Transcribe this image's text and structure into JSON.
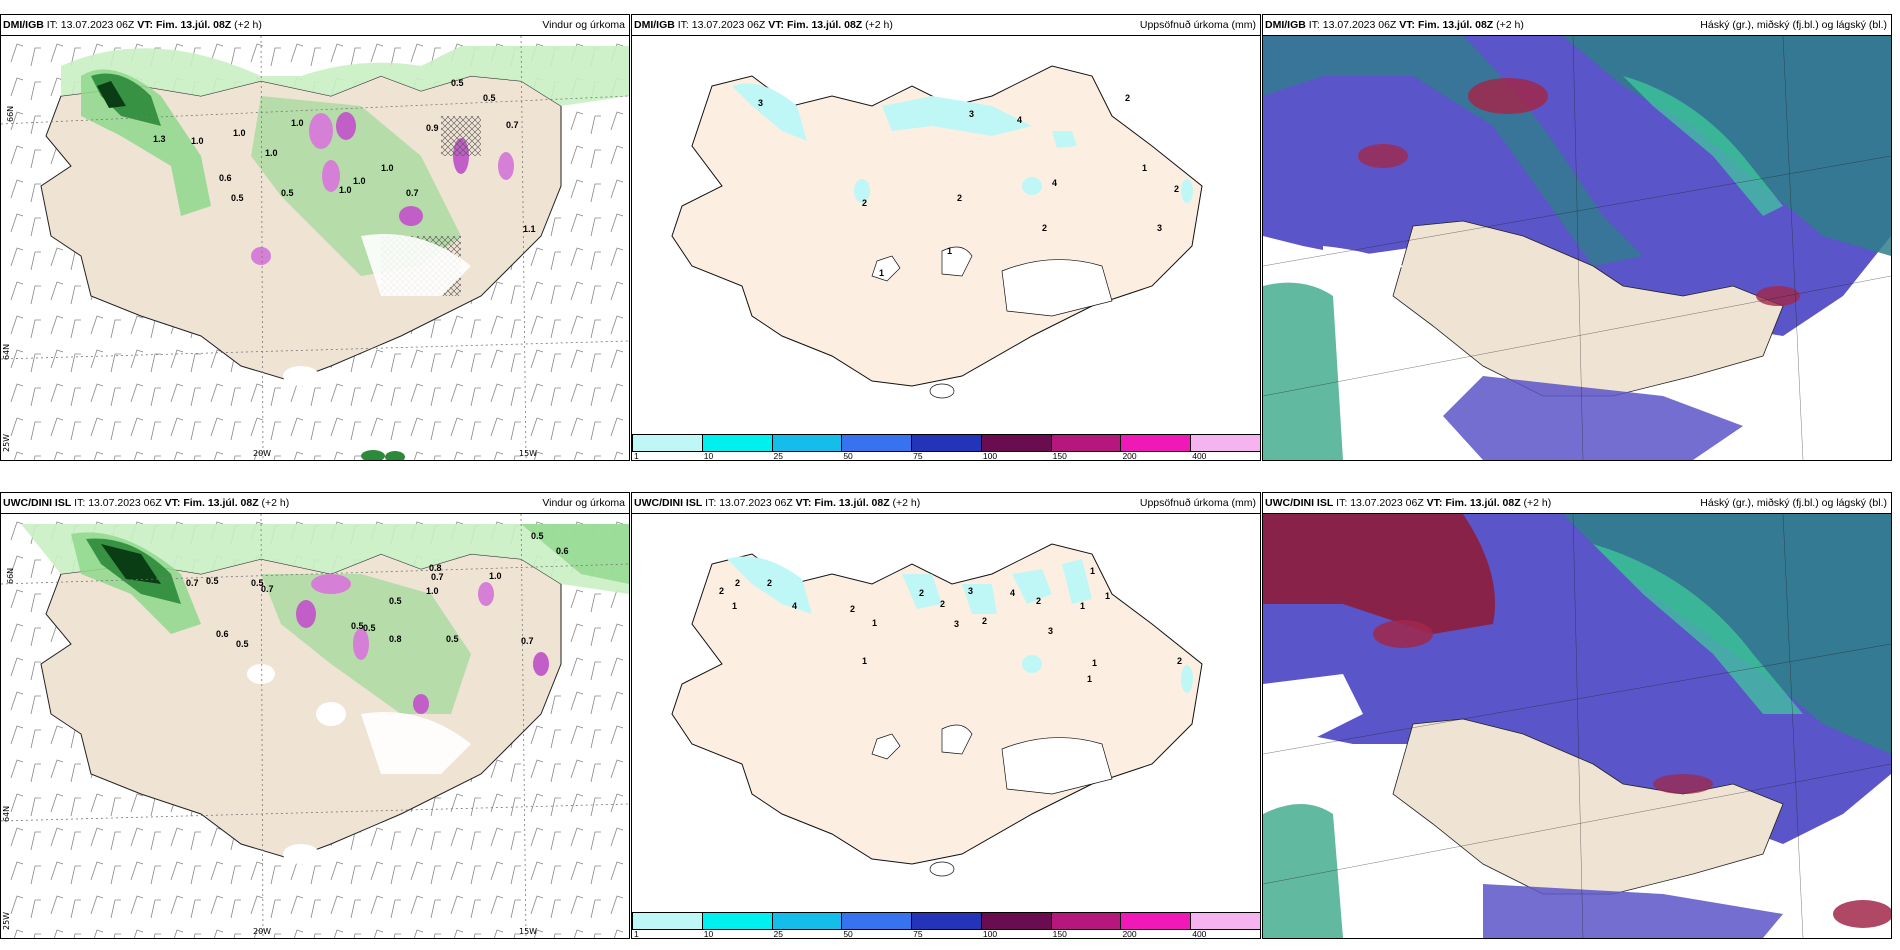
{
  "panels": [
    {
      "model": "DMI/IGB",
      "it": "13.07.2023 06Z",
      "vt_label": "VT:",
      "vt": "Fim. 13.júl. 08Z",
      "lead": "(+2 h)",
      "field": "Vindur og úrkoma"
    },
    {
      "model": "DMI/IGB",
      "it": "13.07.2023 06Z",
      "vt_label": "VT:",
      "vt": "Fim. 13.júl. 08Z",
      "lead": "(+2 h)",
      "field": "Uppsöfnuð úrkoma (mm)"
    },
    {
      "model": "DMI/IGB",
      "it": "13.07.2023 06Z",
      "vt_label": "VT:",
      "vt": "Fim. 13.júl. 08Z",
      "lead": "(+2 h)",
      "field": "Háský (gr.), miðský (fj.bl.) og lágský (bl.)"
    },
    {
      "model": "UWC/DINI ISL",
      "it": "13.07.2023 06Z",
      "vt_label": "VT:",
      "vt": "Fim. 13.júl. 08Z",
      "lead": "(+2 h)",
      "field": "Vindur og úrkoma"
    },
    {
      "model": "UWC/DINI ISL",
      "it": "13.07.2023 06Z",
      "vt_label": "VT:",
      "vt": "Fim. 13.júl. 08Z",
      "lead": "(+2 h)",
      "field": "Uppsöfnuð úrkoma (mm)"
    },
    {
      "model": "UWC/DINI ISL",
      "it": "13.07.2023 06Z",
      "vt_label": "VT:",
      "vt": "Fim. 13.júl. 08Z",
      "lead": "(+2 h)",
      "field": "Háský (gr.), miðský (fj.bl.) og lágský (bl.)"
    }
  ],
  "it_prefix": "IT:",
  "axis_labels": {
    "lat66": "66N",
    "lat64": "64N",
    "lon25": "25W",
    "lon20": "20W",
    "lon15": "15W"
  },
  "colorbar": {
    "ticks": [
      "1",
      "10",
      "25",
      "50",
      "75",
      "100",
      "150",
      "200",
      "400"
    ],
    "colors": [
      "#bff7f7",
      "#00efef",
      "#14bdea",
      "#3773ee",
      "#2334b8",
      "#6a0c50",
      "#b5177d",
      "#f018b6",
      "#f5b3f0"
    ]
  },
  "rain_values_top": [
    "0.5",
    "0.5",
    "0.7",
    "0.9",
    "1.0",
    "1.3",
    "1.0",
    "0.5",
    "0.6",
    "0.5",
    "1.0",
    "1.0",
    "0.7",
    "1.1",
    "1.0",
    "1.0",
    "1.0"
  ],
  "rain_values_bottom": [
    "0.5",
    "0.6",
    "0.5",
    "0.7",
    "0.5",
    "0.6",
    "0.5",
    "1.0",
    "0.8",
    "0.5",
    "1.0",
    "0.7",
    "0.7",
    "0.5",
    "0.5",
    "0.7",
    "0.8",
    "0.5"
  ],
  "accum_values_top": [
    "3",
    "3",
    "4",
    "2",
    "1",
    "2",
    "4",
    "1",
    "2",
    "2",
    "1",
    "3",
    "2"
  ],
  "accum_values_bottom": [
    "2",
    "2",
    "1",
    "4",
    "2",
    "2",
    "2",
    "3",
    "4",
    "2",
    "1",
    "2",
    "1",
    "3",
    "2",
    "3",
    "1",
    "1",
    "1",
    "1",
    "2",
    "1"
  ]
}
